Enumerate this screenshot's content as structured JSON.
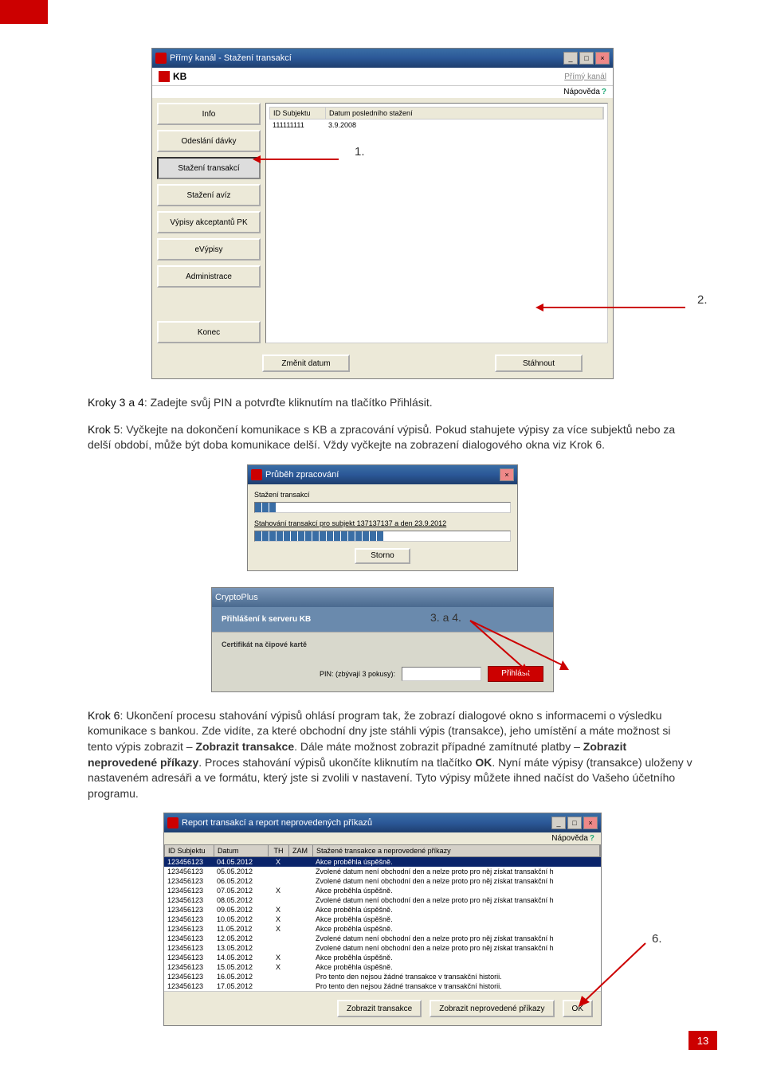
{
  "annotations": {
    "a1": "1.",
    "a2": "2.",
    "a34": "3. a 4.",
    "a6": "6."
  },
  "win1": {
    "title": "Přímý kanál - Stažení transakcí",
    "brand": "KB",
    "brand_right": "Přímý kanál",
    "help": "Nápověda",
    "sidebar": [
      "Info",
      "Odeslání dávky",
      "Stažení transakcí",
      "Stažení avíz",
      "Výpisy akceptantů PK",
      "eVýpisy",
      "Administrace",
      "Konec"
    ],
    "cols": [
      "ID Subjektu",
      "Datum posledního stažení"
    ],
    "row": [
      "111111111",
      "3.9.2008"
    ],
    "bottom": [
      "Změnit datum",
      "Stáhnout"
    ]
  },
  "text1": {
    "p1_prefix": "Kroky 3 a 4",
    "p1_rest": ": Zadejte svůj PIN a potvrďte kliknutím na tlačítko Přihlásit.",
    "p2_prefix": "Krok 5",
    "p2_rest": ": Vyčkejte na dokončení komunikace s KB a zpracování výpisů. Pokud stahujete výpisy za více subjektů nebo za delší období, může být doba komunikace delší. Vždy vyčkejte na zobrazení dialogového okna viz Krok 6."
  },
  "win2": {
    "title": "Průběh zpracování",
    "line1": "Stažení transakcí",
    "line2": "Stahování transakcí pro subjekt 137137137 a den 23.9.2012",
    "storno": "Storno"
  },
  "win3": {
    "title": "CryptoPlus",
    "row1": "Přihlášení k serveru KB",
    "row2": "Certifikát na čipové kartě",
    "pin_label": "PIN: (zbývají 3 pokusy):",
    "btn": "Přihlásit"
  },
  "text2": {
    "prefix": "Krok 6",
    "body": ": Ukončení procesu stahování výpisů ohlásí program tak, že zobrazí dialogové okno s informacemi o výsledku komunikace s bankou. Zde vidíte, za které obchodní dny jste stáhli výpis (transakce), jeho umístění a máte možnost si tento výpis zobrazit – ",
    "b1": "Zobrazit transakce",
    "mid1": ". Dále máte možnost zobrazit případné zamítnuté platby – ",
    "b2": "Zobrazit neprovedené příkazy",
    "mid2": ". Proces stahování výpisů ukončíte kliknutím na tlačítko ",
    "b3": "OK",
    "tail": ". Nyní máte výpisy (transakce) uloženy v nastaveném adresáři a ve formátu, který jste si zvolili v nastavení. Tyto výpisy můžete ihned načíst do Vašeho účetního programu."
  },
  "win4": {
    "title": "Report transakcí a report neprovedených příkazů",
    "help": "Nápověda",
    "cols": [
      "ID Subjektu",
      "Datum",
      "TH",
      "ZAM",
      "Stažené transakce a neprovedené příkazy"
    ],
    "rows": [
      [
        "123456123",
        "04.05.2012",
        "X",
        "",
        "Akce proběhla úspěšně."
      ],
      [
        "123456123",
        "05.05.2012",
        "",
        "",
        "Zvolené datum není obchodní den a nelze proto pro něj získat transakční h"
      ],
      [
        "123456123",
        "06.05.2012",
        "",
        "",
        "Zvolené datum není obchodní den a nelze proto pro něj získat transakční h"
      ],
      [
        "123456123",
        "07.05.2012",
        "X",
        "",
        "Akce proběhla úspěšně."
      ],
      [
        "123456123",
        "08.05.2012",
        "",
        "",
        "Zvolené datum není obchodní den a nelze proto pro něj získat transakční h"
      ],
      [
        "123456123",
        "09.05.2012",
        "X",
        "",
        "Akce proběhla úspěšně."
      ],
      [
        "123456123",
        "10.05.2012",
        "X",
        "",
        "Akce proběhla úspěšně."
      ],
      [
        "123456123",
        "11.05.2012",
        "X",
        "",
        "Akce proběhla úspěšně."
      ],
      [
        "123456123",
        "12.05.2012",
        "",
        "",
        "Zvolené datum není obchodní den a nelze proto pro něj získat transakční h"
      ],
      [
        "123456123",
        "13.05.2012",
        "",
        "",
        "Zvolené datum není obchodní den a nelze proto pro něj získat transakční h"
      ],
      [
        "123456123",
        "14.05.2012",
        "X",
        "",
        "Akce proběhla úspěšně."
      ],
      [
        "123456123",
        "15.05.2012",
        "X",
        "",
        "Akce proběhla úspěšně."
      ],
      [
        "123456123",
        "16.05.2012",
        "",
        "",
        "Pro tento den nejsou žádné transakce v transakční historii."
      ],
      [
        "123456123",
        "17.05.2012",
        "",
        "",
        "Pro tento den nejsou žádné transakce v transakční historii."
      ]
    ],
    "buttons": [
      "Zobrazit transakce",
      "Zobrazit neprovedené příkazy",
      "OK"
    ]
  },
  "page_num": "13"
}
